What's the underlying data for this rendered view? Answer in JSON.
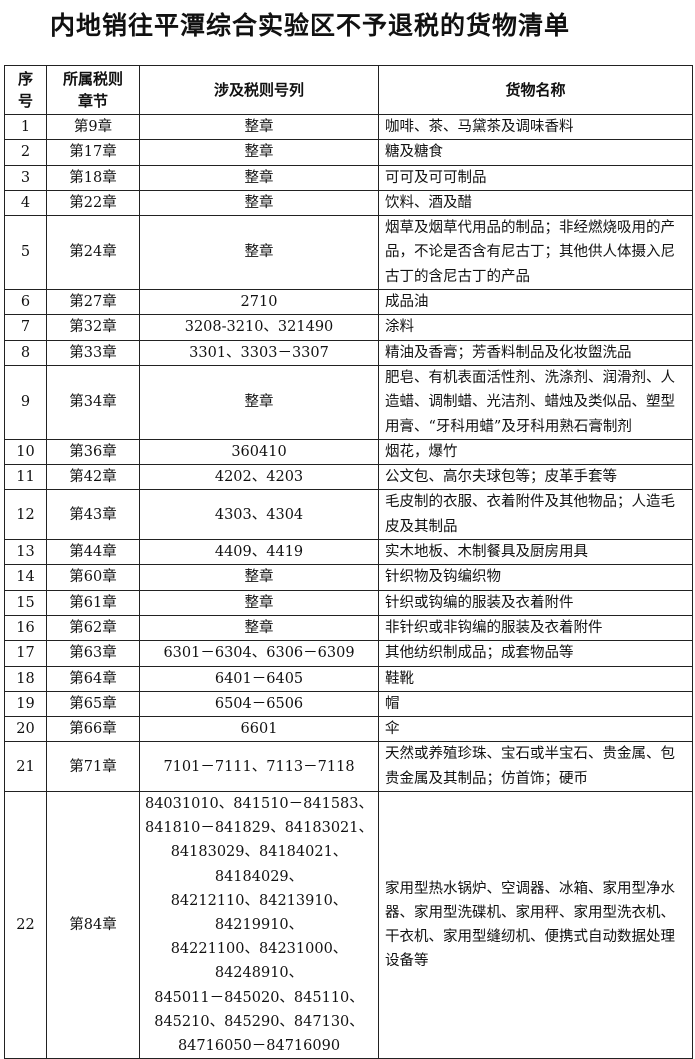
{
  "title": "内地销往平潭综合实验区不予退税的货物清单",
  "table": {
    "headers": {
      "no_line1": "序",
      "no_line2": "号",
      "chapter_line1": "所属税则",
      "chapter_line2": "章节",
      "codes": "涉及税则号列",
      "goods": "货物名称"
    },
    "rows": [
      {
        "no": "1",
        "chapter": "第9章",
        "codes": "整章",
        "goods": "咖啡、茶、马黛茶及调味香料"
      },
      {
        "no": "2",
        "chapter": "第17章",
        "codes": "整章",
        "goods": "糖及糖食"
      },
      {
        "no": "3",
        "chapter": "第18章",
        "codes": "整章",
        "goods": "可可及可可制品"
      },
      {
        "no": "4",
        "chapter": "第22章",
        "codes": "整章",
        "goods": "饮料、酒及醋"
      },
      {
        "no": "5",
        "chapter": "第24章",
        "codes": "整章",
        "goods": "烟草及烟草代用品的制品；非经燃烧吸用的产品，不论是否含有尼古丁；其他供人体摄入尼古丁的含尼古丁的产品"
      },
      {
        "no": "6",
        "chapter": "第27章",
        "codes": "2710",
        "goods": "成品油"
      },
      {
        "no": "7",
        "chapter": "第32章",
        "codes": "3208-3210、321490",
        "goods": "涂料"
      },
      {
        "no": "8",
        "chapter": "第33章",
        "codes": "3301、3303－3307",
        "goods": "精油及香膏；芳香料制品及化妆盥洗品"
      },
      {
        "no": "9",
        "chapter": "第34章",
        "codes": "整章",
        "goods": "肥皂、有机表面活性剂、洗涤剂、润滑剂、人造蜡、调制蜡、光洁剂、蜡烛及类似品、塑型用膏、“牙科用蜡”及牙科用熟石膏制剂"
      },
      {
        "no": "10",
        "chapter": "第36章",
        "codes": "360410",
        "goods": "烟花，爆竹"
      },
      {
        "no": "11",
        "chapter": "第42章",
        "codes": "4202、4203",
        "goods": "公文包、高尔夫球包等；皮革手套等"
      },
      {
        "no": "12",
        "chapter": "第43章",
        "codes": "4303、4304",
        "goods": "毛皮制的衣服、衣着附件及其他物品；人造毛皮及其制品"
      },
      {
        "no": "13",
        "chapter": "第44章",
        "codes": "4409、4419",
        "goods": "实木地板、木制餐具及厨房用具"
      },
      {
        "no": "14",
        "chapter": "第60章",
        "codes": "整章",
        "goods": "针织物及钩编织物"
      },
      {
        "no": "15",
        "chapter": "第61章",
        "codes": "整章",
        "goods": "针织或钩编的服装及衣着附件"
      },
      {
        "no": "16",
        "chapter": "第62章",
        "codes": "整章",
        "goods": "非针织或非钩编的服装及衣着附件"
      },
      {
        "no": "17",
        "chapter": "第63章",
        "codes": "6301－6304、6306－6309",
        "goods": "其他纺织制成品；成套物品等"
      },
      {
        "no": "18",
        "chapter": "第64章",
        "codes": "6401－6405",
        "goods": "鞋靴"
      },
      {
        "no": "19",
        "chapter": "第65章",
        "codes": "6504－6506",
        "goods": "帽"
      },
      {
        "no": "20",
        "chapter": "第66章",
        "codes": "6601",
        "goods": "伞"
      },
      {
        "no": "21",
        "chapter": "第71章",
        "codes": "7101－7111、7113－7118",
        "goods": "天然或养殖珍珠、宝石或半宝石、贵金属、包贵金属及其制品；仿首饰；硬币"
      }
    ],
    "last_row": {
      "no": "22",
      "chapter": "第84章",
      "code_lines": [
        "84031010、841510－841583、",
        "841810－841829、84183021、",
        "84183029、84184021、84184029、",
        "84212110、84213910、84219910、",
        "84221100、84231000、84248910、",
        "845011－845020、845110、",
        "845210、845290、847130、",
        "84716050－84716090"
      ],
      "goods": "家用型热水锅炉、空调器、冰箱、家用型净水器、家用型洗碟机、家用秤、家用型洗衣机、干衣机、家用型缝纫机、便携式自动数据处理设备等"
    }
  }
}
